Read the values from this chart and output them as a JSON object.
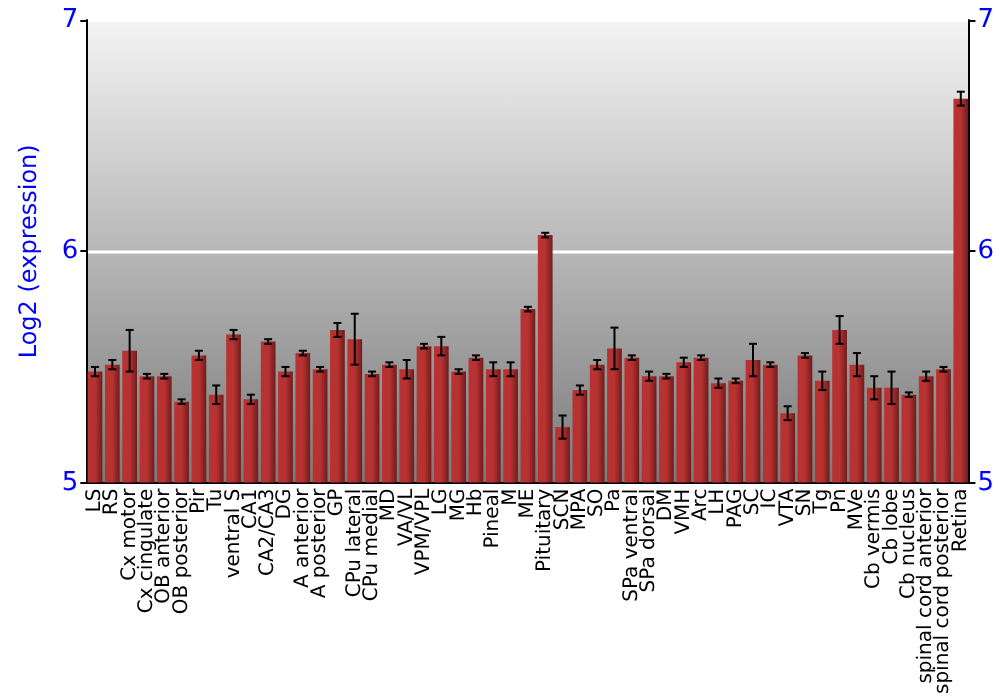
{
  "chart_data": {
    "type": "bar",
    "ylabel": "Log2 (expression)",
    "categories": [
      "LS",
      "RS",
      "Cx motor",
      "Cx cingulate",
      "OB anterior",
      "OB posterior",
      "Pir",
      "Tu",
      "ventral S",
      "CA1",
      "CA2/CA3",
      "DG",
      "A anterior",
      "A posterior",
      "GP",
      "CPu lateral",
      "CPu medial",
      "MD",
      "VA/VL",
      "VPM/VPL",
      "LG",
      "MG",
      "Hb",
      "Pineal",
      "M",
      "ME",
      "Pituitary",
      "SCN",
      "MPA",
      "SO",
      "Pa",
      "SPa ventral",
      "SPa dorsal",
      "DM",
      "VMH",
      "Arc",
      "LH",
      "PAG",
      "SC",
      "IC",
      "VTA",
      "SN",
      "Tg",
      "Pn",
      "MVe",
      "Cb vermis",
      "Cb lobe",
      "Cb nucleus",
      "spinal cord anterior",
      "spinal cord posterior",
      "Retina"
    ],
    "values": [
      5.48,
      5.51,
      5.57,
      5.46,
      5.46,
      5.35,
      5.55,
      5.38,
      5.64,
      5.36,
      5.61,
      5.48,
      5.56,
      5.49,
      5.66,
      5.62,
      5.47,
      5.51,
      5.49,
      5.59,
      5.59,
      5.48,
      5.54,
      5.49,
      5.49,
      5.75,
      6.07,
      5.24,
      5.4,
      5.51,
      5.58,
      5.54,
      5.46,
      5.46,
      5.52,
      5.54,
      5.43,
      5.44,
      5.53,
      5.51,
      5.3,
      5.55,
      5.44,
      5.66,
      5.51,
      5.41,
      5.41,
      5.38,
      5.46,
      5.49,
      6.66
    ],
    "errors": [
      0.02,
      0.02,
      0.09,
      0.01,
      0.01,
      0.01,
      0.02,
      0.04,
      0.02,
      0.02,
      0.01,
      0.02,
      0.01,
      0.01,
      0.03,
      0.11,
      0.01,
      0.01,
      0.04,
      0.01,
      0.04,
      0.01,
      0.01,
      0.03,
      0.03,
      0.01,
      0.01,
      0.05,
      0.02,
      0.02,
      0.09,
      0.01,
      0.02,
      0.01,
      0.02,
      0.01,
      0.02,
      0.01,
      0.07,
      0.01,
      0.03,
      0.01,
      0.04,
      0.06,
      0.05,
      0.05,
      0.07,
      0.01,
      0.02,
      0.01,
      0.03
    ],
    "color": "#b83232",
    "ylim": [
      5,
      7
    ],
    "yticks": [
      5,
      6,
      7
    ],
    "y2lim": [
      5,
      7
    ],
    "y2ticks": [
      5,
      6,
      7
    ],
    "grid": "y"
  }
}
